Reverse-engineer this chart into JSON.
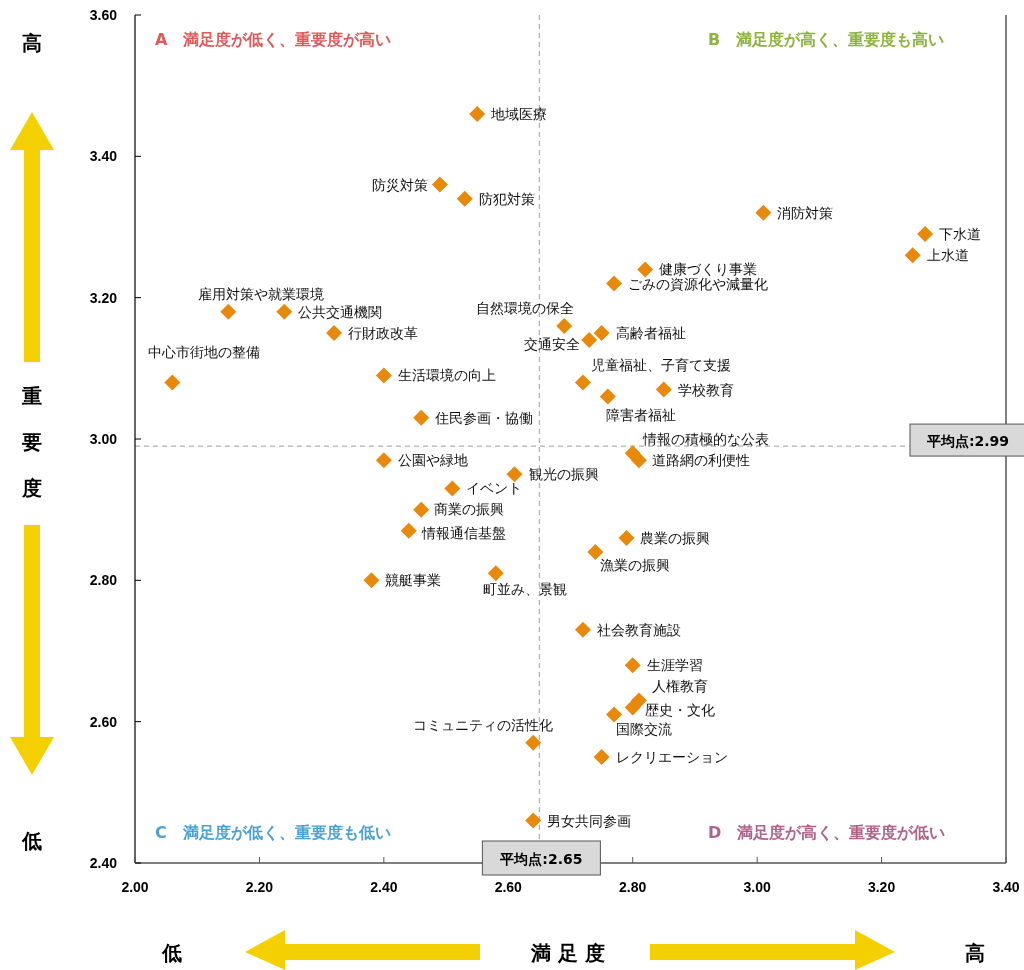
{
  "chart_data": {
    "type": "scatter",
    "xlabel": "満 足 度",
    "ylabel": "重要度",
    "marker": "diamond",
    "grid": false,
    "xlim": [
      2.0,
      3.4
    ],
    "xticks": [
      {
        "value": 2.0,
        "label": "2.00"
      },
      {
        "value": 2.2,
        "label": "2.20"
      },
      {
        "value": 2.4,
        "label": "2.40"
      },
      {
        "value": 2.6,
        "label": "2.60"
      },
      {
        "value": 2.8,
        "label": "2.80"
      },
      {
        "value": 3.0,
        "label": "3.00"
      },
      {
        "value": 3.2,
        "label": "3.20"
      },
      {
        "value": 3.4,
        "label": "3.40"
      }
    ],
    "ylim": [
      2.4,
      3.6
    ],
    "yticks": [
      {
        "value": 2.4,
        "label": "2.40"
      },
      {
        "value": 2.6,
        "label": "2.60"
      },
      {
        "value": 2.8,
        "label": "2.80"
      },
      {
        "value": 3.0,
        "label": "3.00"
      },
      {
        "value": 3.2,
        "label": "3.20"
      },
      {
        "value": 3.4,
        "label": "3.40"
      },
      {
        "value": 3.6,
        "label": "3.60"
      }
    ],
    "ref_lines": [
      {
        "axis": "x",
        "value": 2.65,
        "label": "平均点:2.65",
        "color": "#b0b0b0",
        "line_style": "dashed"
      },
      {
        "axis": "y",
        "value": 2.99,
        "label": "平均点:2.99",
        "color": "#b0b0b0",
        "line_style": "dashed"
      }
    ],
    "annotations": [
      "A　満足度が低く、重要度が高い",
      "B　満足度が高く、重要度も高い",
      "C　満足度が低く、重要度も低い",
      "D　満足度が高く、重要度が低い",
      "高",
      "低",
      "低",
      "高"
    ],
    "series": [
      {
        "name": "地域医療",
        "color": "#e8890c",
        "x": [
          2.55
        ],
        "values": [
          3.46
        ]
      },
      {
        "name": "防災対策",
        "color": "#e8890c",
        "x": [
          2.49
        ],
        "values": [
          3.36
        ]
      },
      {
        "name": "防犯対策",
        "color": "#e8890c",
        "x": [
          2.53
        ],
        "values": [
          3.34
        ]
      },
      {
        "name": "消防対策",
        "color": "#e8890c",
        "x": [
          3.01
        ],
        "values": [
          3.32
        ]
      },
      {
        "name": "下水道",
        "color": "#e8890c",
        "x": [
          3.27
        ],
        "values": [
          3.29
        ]
      },
      {
        "name": "上水道",
        "color": "#e8890c",
        "x": [
          3.25
        ],
        "values": [
          3.26
        ]
      },
      {
        "name": "健康づくり事業",
        "color": "#e8890c",
        "x": [
          2.82
        ],
        "values": [
          3.24
        ]
      },
      {
        "name": "ごみの資源化や減量化",
        "color": "#e8890c",
        "x": [
          2.77
        ],
        "values": [
          3.22
        ]
      },
      {
        "name": "自然環境の保全",
        "color": "#e8890c",
        "x": [
          2.69
        ],
        "values": [
          3.16
        ]
      },
      {
        "name": "高齢者福祉",
        "color": "#e8890c",
        "x": [
          2.75
        ],
        "values": [
          3.15
        ]
      },
      {
        "name": "交通安全",
        "color": "#e8890c",
        "x": [
          2.73
        ],
        "values": [
          3.14
        ]
      },
      {
        "name": "雇用対策や就業環境",
        "color": "#e8890c",
        "x": [
          2.15
        ],
        "values": [
          3.18
        ]
      },
      {
        "name": "公共交通機関",
        "color": "#e8890c",
        "x": [
          2.24
        ],
        "values": [
          3.18
        ]
      },
      {
        "name": "行財政改革",
        "color": "#e8890c",
        "x": [
          2.32
        ],
        "values": [
          3.15
        ]
      },
      {
        "name": "中心市街地の整備",
        "color": "#e8890c",
        "x": [
          2.06
        ],
        "values": [
          3.08
        ]
      },
      {
        "name": "生活環境の向上",
        "color": "#e8890c",
        "x": [
          2.4
        ],
        "values": [
          3.09
        ]
      },
      {
        "name": "児童福祉、子育て支援",
        "color": "#e8890c",
        "x": [
          2.72
        ],
        "values": [
          3.08
        ]
      },
      {
        "name": "学校教育",
        "color": "#e8890c",
        "x": [
          2.85
        ],
        "values": [
          3.07
        ]
      },
      {
        "name": "障害者福祉",
        "color": "#e8890c",
        "x": [
          2.76
        ],
        "values": [
          3.06
        ]
      },
      {
        "name": "住民参画・協働",
        "color": "#e8890c",
        "x": [
          2.46
        ],
        "values": [
          3.03
        ]
      },
      {
        "name": "情報の積極的な公表",
        "color": "#e8890c",
        "x": [
          2.8
        ],
        "values": [
          2.98
        ]
      },
      {
        "name": "道路網の利便性",
        "color": "#e8890c",
        "x": [
          2.81
        ],
        "values": [
          2.97
        ]
      },
      {
        "name": "公園や緑地",
        "color": "#e8890c",
        "x": [
          2.4
        ],
        "values": [
          2.97
        ]
      },
      {
        "name": "観光の振興",
        "color": "#e8890c",
        "x": [
          2.61
        ],
        "values": [
          2.95
        ]
      },
      {
        "name": "イベント",
        "color": "#e8890c",
        "x": [
          2.51
        ],
        "values": [
          2.93
        ]
      },
      {
        "name": "商業の振興",
        "color": "#e8890c",
        "x": [
          2.46
        ],
        "values": [
          2.9
        ]
      },
      {
        "name": "情報通信基盤",
        "color": "#e8890c",
        "x": [
          2.44
        ],
        "values": [
          2.87
        ]
      },
      {
        "name": "農業の振興",
        "color": "#e8890c",
        "x": [
          2.79
        ],
        "values": [
          2.86
        ]
      },
      {
        "name": "漁業の振興",
        "color": "#e8890c",
        "x": [
          2.74
        ],
        "values": [
          2.84
        ]
      },
      {
        "name": "競艇事業",
        "color": "#e8890c",
        "x": [
          2.38
        ],
        "values": [
          2.8
        ]
      },
      {
        "name": "町並み、景観",
        "color": "#e8890c",
        "x": [
          2.58
        ],
        "values": [
          2.81
        ]
      },
      {
        "name": "社会教育施設",
        "color": "#e8890c",
        "x": [
          2.72
        ],
        "values": [
          2.73
        ]
      },
      {
        "name": "生涯学習",
        "color": "#e8890c",
        "x": [
          2.8
        ],
        "values": [
          2.68
        ]
      },
      {
        "name": "人権教育",
        "color": "#e8890c",
        "x": [
          2.81
        ],
        "values": [
          2.63
        ]
      },
      {
        "name": "歴史・文化",
        "color": "#e8890c",
        "x": [
          2.8
        ],
        "values": [
          2.62
        ]
      },
      {
        "name": "国際交流",
        "color": "#e8890c",
        "x": [
          2.77
        ],
        "values": [
          2.61
        ]
      },
      {
        "name": "コミュニティの活性化",
        "color": "#e8890c",
        "x": [
          2.64
        ],
        "values": [
          2.57
        ]
      },
      {
        "name": "レクリエーション",
        "color": "#e8890c",
        "x": [
          2.75
        ],
        "values": [
          2.55
        ]
      },
      {
        "name": "男女共同参画",
        "color": "#e8890c",
        "x": [
          2.64
        ],
        "values": [
          2.46
        ]
      }
    ]
  }
}
